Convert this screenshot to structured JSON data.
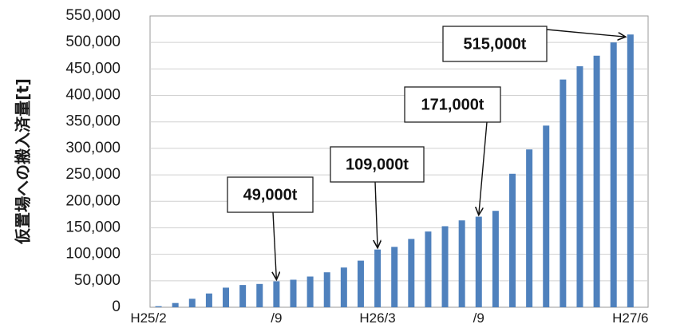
{
  "chart_data": {
    "type": "bar",
    "ylabel": "仮置場への搬入済量[t]",
    "xlabel": "",
    "ylim": [
      0,
      550000
    ],
    "yticks": [
      0,
      50000,
      100000,
      150000,
      200000,
      250000,
      300000,
      350000,
      400000,
      450000,
      500000,
      550000
    ],
    "ytick_labels": [
      "0",
      "50,000",
      "100,000",
      "150,000",
      "200,000",
      "250,000",
      "300,000",
      "350,000",
      "400,000",
      "450,000",
      "500,000",
      "550,000"
    ],
    "grid": true,
    "bar_color": "#4f81bd",
    "values": [
      2000,
      8000,
      16000,
      26000,
      37000,
      42000,
      44000,
      49000,
      52000,
      58000,
      66000,
      75000,
      88000,
      109000,
      114000,
      129000,
      143000,
      153000,
      164000,
      171000,
      182000,
      252000,
      298000,
      343000,
      430000,
      455000,
      475000,
      500000,
      515000
    ],
    "x_tick_labels": [
      {
        "index": 0,
        "label": "H25/2"
      },
      {
        "index": 7,
        "label": "/9"
      },
      {
        "index": 13,
        "label": "H26/3"
      },
      {
        "index": 19,
        "label": "/9"
      },
      {
        "index": 28,
        "label": "H27/6"
      }
    ],
    "annotations": [
      {
        "text": "49,000t",
        "bar_index": 7
      },
      {
        "text": "109,000t",
        "bar_index": 13
      },
      {
        "text": "171,000t",
        "bar_index": 19
      },
      {
        "text": "515,000t",
        "bar_index": 28
      }
    ]
  }
}
